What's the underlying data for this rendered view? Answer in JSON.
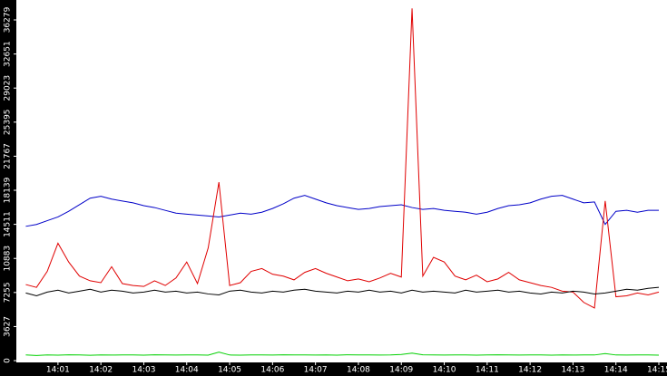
{
  "chart_data": {
    "type": "line",
    "x": [
      840.25,
      840.5,
      840.75,
      841,
      841.25,
      841.5,
      841.75,
      842,
      842.25,
      842.5,
      842.75,
      843,
      843.25,
      843.5,
      843.75,
      844,
      844.25,
      844.5,
      844.75,
      845,
      845.25,
      845.5,
      845.75,
      846,
      846.25,
      846.5,
      846.75,
      847,
      847.25,
      847.5,
      847.75,
      848,
      848.25,
      848.5,
      848.75,
      849,
      849.25,
      849.5,
      849.75,
      850,
      850.25,
      850.5,
      850.75,
      851,
      851.25,
      851.5,
      851.75,
      852,
      852.25,
      852.5,
      852.75,
      853,
      853.25,
      853.5,
      853.75,
      854,
      854.25,
      854.5,
      854.75,
      855
    ],
    "series": [
      {
        "color": "#0000c8",
        "values": [
          14300,
          14500,
          14900,
          15300,
          15900,
          16600,
          17300,
          17500,
          17200,
          17000,
          16800,
          16500,
          16300,
          16000,
          15700,
          15600,
          15500,
          15400,
          15300,
          15500,
          15700,
          15600,
          15800,
          16200,
          16700,
          17300,
          17600,
          17200,
          16800,
          16500,
          16300,
          16100,
          16200,
          16400,
          16500,
          16600,
          16300,
          16100,
          16200,
          16000,
          15900,
          15800,
          15600,
          15800,
          16200,
          16500,
          16600,
          16800,
          17200,
          17500,
          17600,
          17200,
          16800,
          16900,
          14500,
          15900,
          16000,
          15800,
          16000,
          16000
        ]
      },
      {
        "color": "#e00000",
        "values": [
          8100,
          7800,
          9500,
          12500,
          10500,
          9000,
          8500,
          8300,
          10000,
          8200,
          8000,
          7900,
          8500,
          8000,
          8800,
          10500,
          8200,
          12000,
          19000,
          8000,
          8300,
          9500,
          9800,
          9200,
          9000,
          8600,
          9400,
          9800,
          9300,
          8900,
          8500,
          8700,
          8400,
          8800,
          9300,
          8900,
          37500,
          9000,
          11000,
          10500,
          9000,
          8600,
          9100,
          8400,
          8700,
          9400,
          8600,
          8300,
          8000,
          7800,
          7400,
          7300,
          6200,
          5600,
          17000,
          6800,
          6900,
          7200,
          7000,
          7300
        ]
      },
      {
        "color": "#000000",
        "values": [
          7200,
          6900,
          7300,
          7500,
          7200,
          7400,
          7600,
          7300,
          7500,
          7400,
          7200,
          7300,
          7500,
          7300,
          7400,
          7200,
          7300,
          7100,
          7000,
          7400,
          7500,
          7300,
          7200,
          7400,
          7300,
          7500,
          7600,
          7400,
          7300,
          7200,
          7400,
          7300,
          7500,
          7300,
          7400,
          7200,
          7500,
          7300,
          7400,
          7300,
          7200,
          7500,
          7300,
          7400,
          7500,
          7300,
          7400,
          7200,
          7100,
          7300,
          7200,
          7400,
          7300,
          7100,
          7200,
          7400,
          7600,
          7500,
          7700,
          7800
        ]
      },
      {
        "color": "#00d000",
        "values": [
          600,
          550,
          600,
          580,
          620,
          600,
          570,
          600,
          590,
          610,
          600,
          580,
          620,
          600,
          590,
          610,
          600,
          580,
          900,
          600,
          580,
          610,
          600,
          590,
          620,
          600,
          610,
          590,
          600,
          580,
          620,
          600,
          610,
          590,
          600,
          650,
          800,
          620,
          600,
          590,
          600,
          610,
          580,
          600,
          620,
          600,
          590,
          610,
          600,
          580,
          600,
          590,
          610,
          600,
          750,
          600,
          590,
          610,
          600,
          580
        ]
      }
    ],
    "xlim": [
      840.03,
      855.19
    ],
    "xticks": [
      {
        "value": 841,
        "label": "14:01"
      },
      {
        "value": 842,
        "label": "14:02"
      },
      {
        "value": 843,
        "label": "14:03"
      },
      {
        "value": 844,
        "label": "14:04"
      },
      {
        "value": 845,
        "label": "14:05"
      },
      {
        "value": 846,
        "label": "14:06"
      },
      {
        "value": 847,
        "label": "14:07"
      },
      {
        "value": 848,
        "label": "14:08"
      },
      {
        "value": 849,
        "label": "14:09"
      },
      {
        "value": 850,
        "label": "14:10"
      },
      {
        "value": 851,
        "label": "14:11"
      },
      {
        "value": 852,
        "label": "14:12"
      },
      {
        "value": 853,
        "label": "14:13"
      },
      {
        "value": 854,
        "label": "14:14"
      },
      {
        "value": 855,
        "label": "14:15"
      }
    ],
    "ylim": [
      -190,
      38400
    ],
    "yticks": [
      0,
      3627,
      7255,
      10883,
      14511,
      18139,
      21767,
      25395,
      29023,
      32651,
      36279
    ]
  }
}
